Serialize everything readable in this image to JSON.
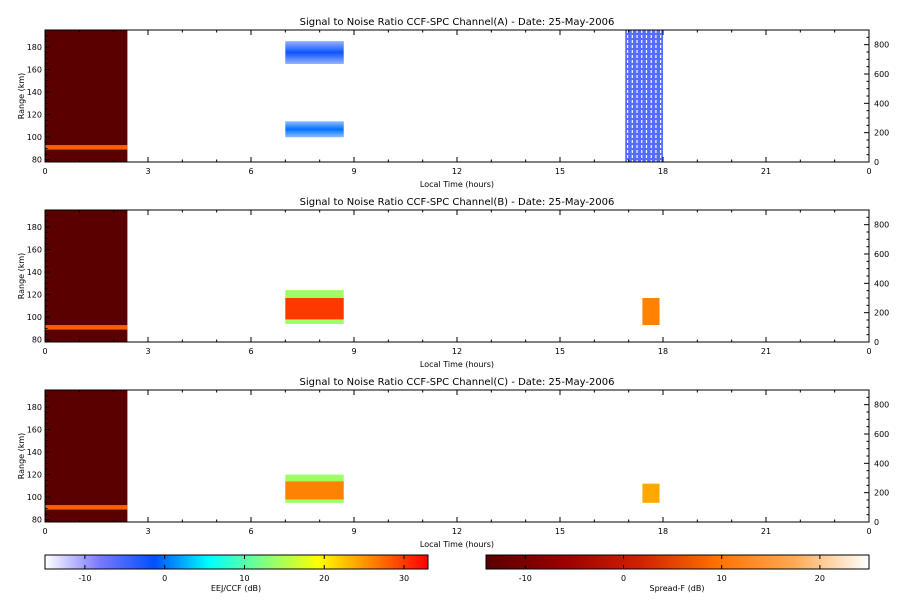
{
  "chart_data": [
    {
      "type": "heatmap",
      "title": "Signal to Noise Ratio CCF-SPC Channel(A) - Date: 25-May-2006",
      "xlabel": "Local Time (hours)",
      "ylabel": "Range (km)",
      "xlim": [
        0,
        24
      ],
      "ylim": [
        78,
        195
      ],
      "xticks": [
        "0",
        "3",
        "6",
        "9",
        "12",
        "15",
        "18",
        "21",
        "0"
      ],
      "yticks": [
        "80",
        "100",
        "120",
        "140",
        "160",
        "180"
      ],
      "y2ticks": [
        "0",
        "200",
        "400",
        "600",
        "800"
      ],
      "regions": [
        {
          "kind": "spreadf_block",
          "x": [
            0,
            2.4
          ],
          "y": [
            78,
            195
          ],
          "value": -17
        },
        {
          "kind": "spreadf_band",
          "x": [
            0,
            2.4
          ],
          "y": [
            89,
            93
          ],
          "value": 8
        },
        {
          "kind": "eej",
          "x": [
            7.0,
            8.7
          ],
          "y": [
            165,
            185
          ],
          "value": -2
        },
        {
          "kind": "eej",
          "x": [
            7.0,
            8.7
          ],
          "y": [
            100,
            114
          ],
          "value": 0
        },
        {
          "kind": "eej",
          "x": [
            16.9,
            18.0
          ],
          "y": [
            78,
            195
          ],
          "value": -6
        }
      ]
    },
    {
      "type": "heatmap",
      "title": "Signal to Noise Ratio CCF-SPC Channel(B) - Date: 25-May-2006",
      "xlabel": "Local Time (hours)",
      "ylabel": "Range (km)",
      "xlim": [
        0,
        24
      ],
      "ylim": [
        78,
        195
      ],
      "xticks": [
        "0",
        "3",
        "6",
        "9",
        "12",
        "15",
        "18",
        "21",
        "0"
      ],
      "yticks": [
        "80",
        "100",
        "120",
        "140",
        "160",
        "180"
      ],
      "y2ticks": [
        "0",
        "200",
        "400",
        "600",
        "800"
      ],
      "regions": [
        {
          "kind": "spreadf_block",
          "x": [
            0,
            2.4
          ],
          "y": [
            78,
            195
          ],
          "value": -17
        },
        {
          "kind": "spreadf_band",
          "x": [
            0,
            2.4
          ],
          "y": [
            89,
            93
          ],
          "value": 8
        },
        {
          "kind": "eej",
          "x": [
            7.0,
            8.7
          ],
          "y": [
            94,
            124
          ],
          "value": 14
        },
        {
          "kind": "eej",
          "x": [
            7.0,
            8.7
          ],
          "y": [
            98,
            117
          ],
          "value": 30
        },
        {
          "kind": "eej",
          "x": [
            17.4,
            17.9
          ],
          "y": [
            93,
            117
          ],
          "value": 26
        }
      ]
    },
    {
      "type": "heatmap",
      "title": "Signal to Noise Ratio CCF-SPC Channel(C) - Date: 25-May-2006",
      "xlabel": "Local Time (hours)",
      "ylabel": "Range (km)",
      "xlim": [
        0,
        24
      ],
      "ylim": [
        78,
        195
      ],
      "xticks": [
        "0",
        "3",
        "6",
        "9",
        "12",
        "15",
        "18",
        "21",
        "0"
      ],
      "yticks": [
        "80",
        "100",
        "120",
        "140",
        "160",
        "180"
      ],
      "y2ticks": [
        "0",
        "200",
        "400",
        "600",
        "800"
      ],
      "regions": [
        {
          "kind": "spreadf_block",
          "x": [
            0,
            2.4
          ],
          "y": [
            78,
            195
          ],
          "value": -17
        },
        {
          "kind": "spreadf_band",
          "x": [
            0,
            2.4
          ],
          "y": [
            89,
            93
          ],
          "value": 8
        },
        {
          "kind": "eej",
          "x": [
            7.0,
            8.7
          ],
          "y": [
            95,
            120
          ],
          "value": 14
        },
        {
          "kind": "eej",
          "x": [
            7.0,
            8.7
          ],
          "y": [
            98,
            114
          ],
          "value": 26
        },
        {
          "kind": "eej",
          "x": [
            17.4,
            17.9
          ],
          "y": [
            95,
            112
          ],
          "value": 24
        }
      ]
    }
  ],
  "colorbars": [
    {
      "label": "EEJ/CCF (dB)",
      "range": [
        -15,
        33
      ],
      "ticks": [
        "-10",
        "0",
        "10",
        "20",
        "30"
      ],
      "tick_values": [
        -10,
        0,
        10,
        20,
        30
      ],
      "stops": [
        "#ffffff",
        "#7a78ff",
        "#0050ff",
        "#00ffff",
        "#80ff80",
        "#ffff00",
        "#ff8000",
        "#ff0000"
      ]
    },
    {
      "label": "Spread-F (dB)",
      "range": [
        -14,
        25
      ],
      "ticks": [
        "-10",
        "0",
        "10",
        "20"
      ],
      "tick_values": [
        -10,
        0,
        10,
        20
      ],
      "stops": [
        "#5a0000",
        "#9a0000",
        "#d02000",
        "#ff7000",
        "#ffa850",
        "#ffffff"
      ]
    }
  ]
}
